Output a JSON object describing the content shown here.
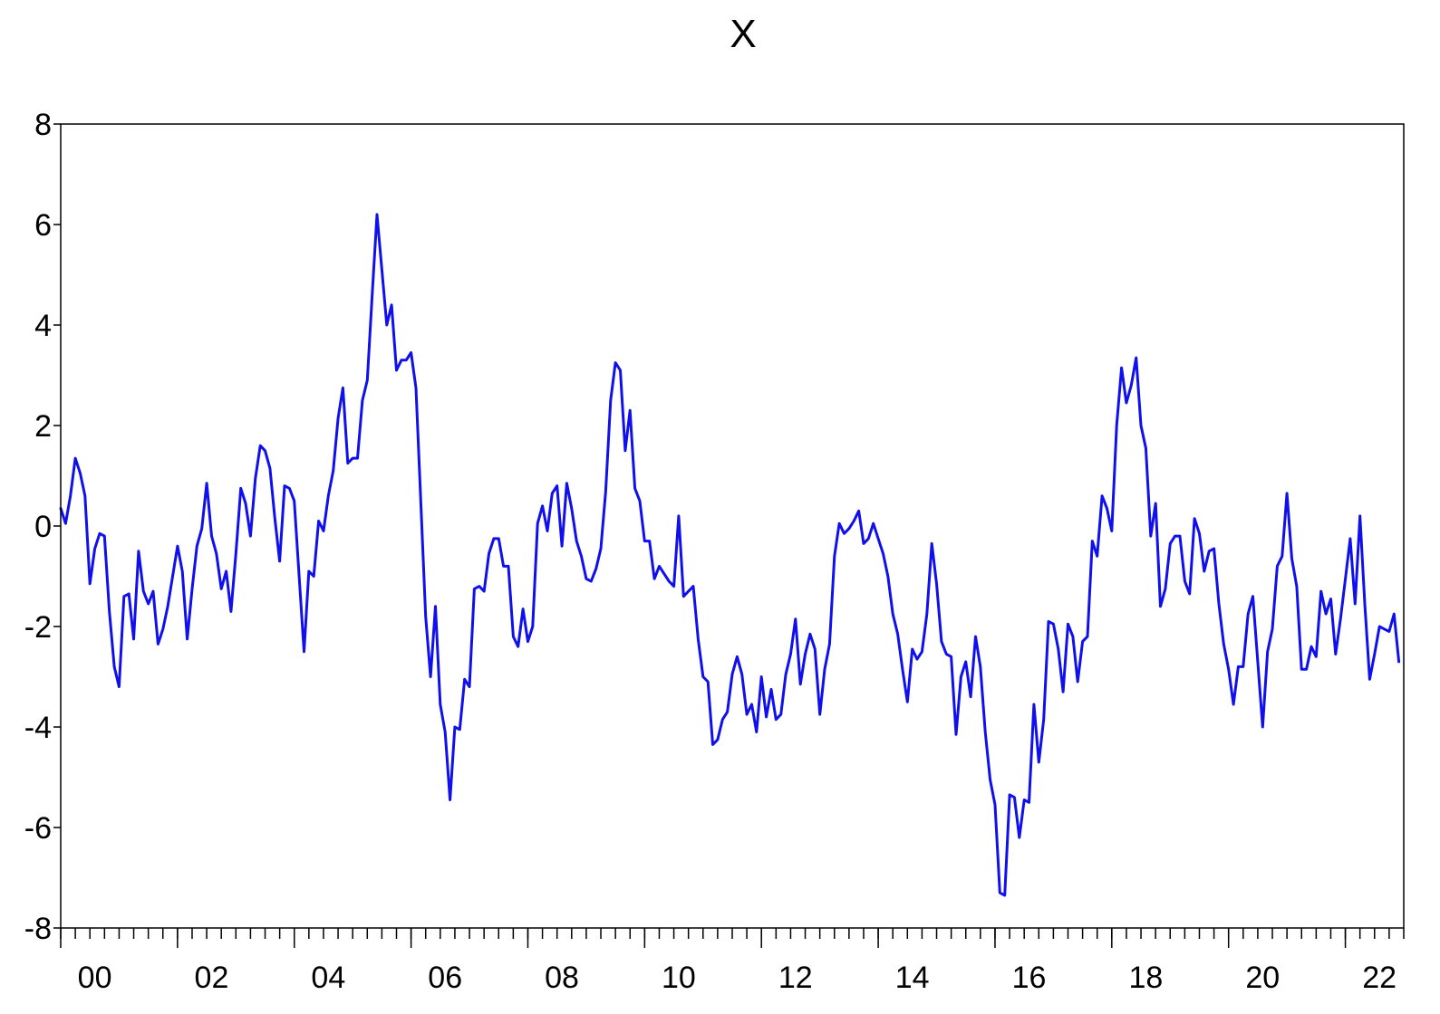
{
  "chart_data": {
    "type": "line",
    "title": "X",
    "xlabel": "",
    "ylabel": "",
    "x_range": [
      "1999-12",
      "2022-12"
    ],
    "ylim": [
      -8,
      8
    ],
    "y_ticks": [
      8,
      6,
      4,
      2,
      0,
      -2,
      -4,
      -6,
      -8
    ],
    "y_tick_labels": [
      "8",
      "6",
      "4",
      "2",
      "0",
      "-2",
      "-4",
      "-6",
      "-8"
    ],
    "x_ticks": [
      "2000",
      "2002",
      "2004",
      "2006",
      "2008",
      "2010",
      "2012",
      "2014",
      "2016",
      "2018",
      "2020",
      "2022"
    ],
    "x_tick_labels": [
      "00",
      "02",
      "04",
      "06",
      "08",
      "10",
      "12",
      "14",
      "16",
      "18",
      "20",
      "22"
    ],
    "grid": false,
    "legend": "none",
    "colors": {
      "series": "#1010ee",
      "axis": "#000000",
      "background": "#ffffff"
    },
    "series": [
      {
        "line_color": "#1010ee",
        "points": [
          [
            "1999-12",
            0.35
          ],
          [
            "2000-01",
            0.05
          ],
          [
            "2000-02",
            0.6
          ],
          [
            "2000-03",
            1.35
          ],
          [
            "2000-04",
            1.05
          ],
          [
            "2000-05",
            0.6
          ],
          [
            "2000-06",
            -1.15
          ],
          [
            "2000-07",
            -0.45
          ],
          [
            "2000-08",
            -0.15
          ],
          [
            "2000-09",
            -0.2
          ],
          [
            "2000-10",
            -1.7
          ],
          [
            "2000-11",
            -2.8
          ],
          [
            "2000-12",
            -3.2
          ],
          [
            "2001-01",
            -1.4
          ],
          [
            "2001-02",
            -1.35
          ],
          [
            "2001-03",
            -2.25
          ],
          [
            "2001-04",
            -0.5
          ],
          [
            "2001-05",
            -1.3
          ],
          [
            "2001-06",
            -1.55
          ],
          [
            "2001-07",
            -1.3
          ],
          [
            "2001-08",
            -2.35
          ],
          [
            "2001-09",
            -2.05
          ],
          [
            "2001-10",
            -1.6
          ],
          [
            "2001-11",
            -1.0
          ],
          [
            "2001-12",
            -0.4
          ],
          [
            "2002-01",
            -0.9
          ],
          [
            "2002-02",
            -2.25
          ],
          [
            "2002-03",
            -1.25
          ],
          [
            "2002-04",
            -0.4
          ],
          [
            "2002-05",
            -0.05
          ],
          [
            "2002-06",
            0.85
          ],
          [
            "2002-07",
            -0.2
          ],
          [
            "2002-08",
            -0.55
          ],
          [
            "2002-09",
            -1.25
          ],
          [
            "2002-10",
            -0.9
          ],
          [
            "2002-11",
            -1.7
          ],
          [
            "2002-12",
            -0.55
          ],
          [
            "2003-01",
            0.75
          ],
          [
            "2003-02",
            0.45
          ],
          [
            "2003-03",
            -0.2
          ],
          [
            "2003-04",
            0.95
          ],
          [
            "2003-05",
            1.6
          ],
          [
            "2003-06",
            1.5
          ],
          [
            "2003-07",
            1.15
          ],
          [
            "2003-08",
            0.15
          ],
          [
            "2003-09",
            -0.7
          ],
          [
            "2003-10",
            0.8
          ],
          [
            "2003-11",
            0.75
          ],
          [
            "2003-12",
            0.5
          ],
          [
            "2004-01",
            -1.0
          ],
          [
            "2004-02",
            -2.5
          ],
          [
            "2004-03",
            -0.9
          ],
          [
            "2004-04",
            -1.0
          ],
          [
            "2004-05",
            0.1
          ],
          [
            "2004-06",
            -0.1
          ],
          [
            "2004-07",
            0.6
          ],
          [
            "2004-08",
            1.1
          ],
          [
            "2004-09",
            2.15
          ],
          [
            "2004-10",
            2.75
          ],
          [
            "2004-11",
            1.25
          ],
          [
            "2004-12",
            1.35
          ],
          [
            "2005-01",
            1.35
          ],
          [
            "2005-02",
            2.5
          ],
          [
            "2005-03",
            2.9
          ],
          [
            "2005-04",
            4.6
          ],
          [
            "2005-05",
            6.2
          ],
          [
            "2005-06",
            5.1
          ],
          [
            "2005-07",
            4.0
          ],
          [
            "2005-08",
            4.4
          ],
          [
            "2005-09",
            3.1
          ],
          [
            "2005-10",
            3.3
          ],
          [
            "2005-11",
            3.3
          ],
          [
            "2005-12",
            3.45
          ],
          [
            "2006-01",
            2.75
          ],
          [
            "2006-02",
            0.5
          ],
          [
            "2006-03",
            -1.8
          ],
          [
            "2006-04",
            -3.0
          ],
          [
            "2006-05",
            -1.6
          ],
          [
            "2006-06",
            -3.55
          ],
          [
            "2006-07",
            -4.1
          ],
          [
            "2006-08",
            -5.45
          ],
          [
            "2006-09",
            -4.0
          ],
          [
            "2006-10",
            -4.05
          ],
          [
            "2006-11",
            -3.05
          ],
          [
            "2006-12",
            -3.2
          ],
          [
            "2007-01",
            -1.25
          ],
          [
            "2007-02",
            -1.2
          ],
          [
            "2007-03",
            -1.3
          ],
          [
            "2007-04",
            -0.55
          ],
          [
            "2007-05",
            -0.25
          ],
          [
            "2007-06",
            -0.25
          ],
          [
            "2007-07",
            -0.8
          ],
          [
            "2007-08",
            -0.8
          ],
          [
            "2007-09",
            -2.2
          ],
          [
            "2007-10",
            -2.4
          ],
          [
            "2007-11",
            -1.65
          ],
          [
            "2007-12",
            -2.3
          ],
          [
            "2008-01",
            -2.0
          ],
          [
            "2008-02",
            0.05
          ],
          [
            "2008-03",
            0.4
          ],
          [
            "2008-04",
            -0.1
          ],
          [
            "2008-05",
            0.65
          ],
          [
            "2008-06",
            0.8
          ],
          [
            "2008-07",
            -0.4
          ],
          [
            "2008-08",
            0.85
          ],
          [
            "2008-09",
            0.35
          ],
          [
            "2008-10",
            -0.3
          ],
          [
            "2008-11",
            -0.6
          ],
          [
            "2008-12",
            -1.05
          ],
          [
            "2009-01",
            -1.1
          ],
          [
            "2009-02",
            -0.85
          ],
          [
            "2009-03",
            -0.45
          ],
          [
            "2009-04",
            0.7
          ],
          [
            "2009-05",
            2.5
          ],
          [
            "2009-06",
            3.25
          ],
          [
            "2009-07",
            3.1
          ],
          [
            "2009-08",
            1.5
          ],
          [
            "2009-09",
            2.3
          ],
          [
            "2009-10",
            0.75
          ],
          [
            "2009-11",
            0.5
          ],
          [
            "2009-12",
            -0.3
          ],
          [
            "2010-01",
            -0.3
          ],
          [
            "2010-02",
            -1.05
          ],
          [
            "2010-03",
            -0.8
          ],
          [
            "2010-04",
            -0.95
          ],
          [
            "2010-05",
            -1.1
          ],
          [
            "2010-06",
            -1.2
          ],
          [
            "2010-07",
            0.2
          ],
          [
            "2010-08",
            -1.4
          ],
          [
            "2010-09",
            -1.3
          ],
          [
            "2010-10",
            -1.2
          ],
          [
            "2010-11",
            -2.25
          ],
          [
            "2010-12",
            -3.0
          ],
          [
            "2011-01",
            -3.1
          ],
          [
            "2011-02",
            -4.35
          ],
          [
            "2011-03",
            -4.25
          ],
          [
            "2011-04",
            -3.85
          ],
          [
            "2011-05",
            -3.7
          ],
          [
            "2011-06",
            -2.95
          ],
          [
            "2011-07",
            -2.6
          ],
          [
            "2011-08",
            -2.95
          ],
          [
            "2011-09",
            -3.75
          ],
          [
            "2011-10",
            -3.55
          ],
          [
            "2011-11",
            -4.1
          ],
          [
            "2011-12",
            -3.0
          ],
          [
            "2012-01",
            -3.8
          ],
          [
            "2012-02",
            -3.25
          ],
          [
            "2012-03",
            -3.85
          ],
          [
            "2012-04",
            -3.75
          ],
          [
            "2012-05",
            -2.95
          ],
          [
            "2012-06",
            -2.55
          ],
          [
            "2012-07",
            -1.85
          ],
          [
            "2012-08",
            -3.15
          ],
          [
            "2012-09",
            -2.55
          ],
          [
            "2012-10",
            -2.15
          ],
          [
            "2012-11",
            -2.45
          ],
          [
            "2012-12",
            -3.75
          ],
          [
            "2013-01",
            -2.85
          ],
          [
            "2013-02",
            -2.35
          ],
          [
            "2013-03",
            -0.6
          ],
          [
            "2013-04",
            0.05
          ],
          [
            "2013-05",
            -0.15
          ],
          [
            "2013-06",
            -0.05
          ],
          [
            "2013-07",
            0.1
          ],
          [
            "2013-08",
            0.3
          ],
          [
            "2013-09",
            -0.35
          ],
          [
            "2013-10",
            -0.25
          ],
          [
            "2013-11",
            0.05
          ],
          [
            "2013-12",
            -0.25
          ],
          [
            "2014-01",
            -0.55
          ],
          [
            "2014-02",
            -1.0
          ],
          [
            "2014-03",
            -1.75
          ],
          [
            "2014-04",
            -2.15
          ],
          [
            "2014-05",
            -2.85
          ],
          [
            "2014-06",
            -3.5
          ],
          [
            "2014-07",
            -2.45
          ],
          [
            "2014-08",
            -2.65
          ],
          [
            "2014-09",
            -2.5
          ],
          [
            "2014-10",
            -1.75
          ],
          [
            "2014-11",
            -0.35
          ],
          [
            "2014-12",
            -1.15
          ],
          [
            "2015-01",
            -2.3
          ],
          [
            "2015-02",
            -2.55
          ],
          [
            "2015-03",
            -2.6
          ],
          [
            "2015-04",
            -4.15
          ],
          [
            "2015-05",
            -3.0
          ],
          [
            "2015-06",
            -2.7
          ],
          [
            "2015-07",
            -3.4
          ],
          [
            "2015-08",
            -2.2
          ],
          [
            "2015-09",
            -2.8
          ],
          [
            "2015-10",
            -4.1
          ],
          [
            "2015-11",
            -5.05
          ],
          [
            "2015-12",
            -5.55
          ],
          [
            "2016-01",
            -7.3
          ],
          [
            "2016-02",
            -7.35
          ],
          [
            "2016-03",
            -5.35
          ],
          [
            "2016-04",
            -5.4
          ],
          [
            "2016-05",
            -6.2
          ],
          [
            "2016-06",
            -5.45
          ],
          [
            "2016-07",
            -5.5
          ],
          [
            "2016-08",
            -3.55
          ],
          [
            "2016-09",
            -4.7
          ],
          [
            "2016-10",
            -3.85
          ],
          [
            "2016-11",
            -1.9
          ],
          [
            "2016-12",
            -1.95
          ],
          [
            "2017-01",
            -2.45
          ],
          [
            "2017-02",
            -3.3
          ],
          [
            "2017-03",
            -1.95
          ],
          [
            "2017-04",
            -2.2
          ],
          [
            "2017-05",
            -3.1
          ],
          [
            "2017-06",
            -2.3
          ],
          [
            "2017-07",
            -2.2
          ],
          [
            "2017-08",
            -0.3
          ],
          [
            "2017-09",
            -0.6
          ],
          [
            "2017-10",
            0.6
          ],
          [
            "2017-11",
            0.35
          ],
          [
            "2017-12",
            -0.1
          ],
          [
            "2018-01",
            2.0
          ],
          [
            "2018-02",
            3.15
          ],
          [
            "2018-03",
            2.45
          ],
          [
            "2018-04",
            2.8
          ],
          [
            "2018-05",
            3.35
          ],
          [
            "2018-06",
            2.0
          ],
          [
            "2018-07",
            1.55
          ],
          [
            "2018-08",
            -0.2
          ],
          [
            "2018-09",
            0.45
          ],
          [
            "2018-10",
            -1.6
          ],
          [
            "2018-11",
            -1.25
          ],
          [
            "2018-12",
            -0.35
          ],
          [
            "2019-01",
            -0.2
          ],
          [
            "2019-02",
            -0.2
          ],
          [
            "2019-03",
            -1.1
          ],
          [
            "2019-04",
            -1.35
          ],
          [
            "2019-05",
            0.15
          ],
          [
            "2019-06",
            -0.15
          ],
          [
            "2019-07",
            -0.9
          ],
          [
            "2019-08",
            -0.5
          ],
          [
            "2019-09",
            -0.45
          ],
          [
            "2019-10",
            -1.55
          ],
          [
            "2019-11",
            -2.35
          ],
          [
            "2019-12",
            -2.85
          ],
          [
            "2020-01",
            -3.55
          ],
          [
            "2020-02",
            -2.8
          ],
          [
            "2020-03",
            -2.8
          ],
          [
            "2020-04",
            -1.75
          ],
          [
            "2020-05",
            -1.4
          ],
          [
            "2020-06",
            -2.7
          ],
          [
            "2020-07",
            -4.0
          ],
          [
            "2020-08",
            -2.5
          ],
          [
            "2020-09",
            -2.05
          ],
          [
            "2020-10",
            -0.8
          ],
          [
            "2020-11",
            -0.6
          ],
          [
            "2020-12",
            0.65
          ],
          [
            "2021-01",
            -0.65
          ],
          [
            "2021-02",
            -1.2
          ],
          [
            "2021-03",
            -2.85
          ],
          [
            "2021-04",
            -2.85
          ],
          [
            "2021-05",
            -2.4
          ],
          [
            "2021-06",
            -2.6
          ],
          [
            "2021-07",
            -1.3
          ],
          [
            "2021-08",
            -1.75
          ],
          [
            "2021-09",
            -1.45
          ],
          [
            "2021-10",
            -2.55
          ],
          [
            "2021-11",
            -1.85
          ],
          [
            "2021-12",
            -1.05
          ],
          [
            "2022-01",
            -0.25
          ],
          [
            "2022-02",
            -1.55
          ],
          [
            "2022-03",
            0.2
          ],
          [
            "2022-04",
            -1.55
          ],
          [
            "2022-05",
            -3.05
          ],
          [
            "2022-06",
            -2.55
          ],
          [
            "2022-07",
            -2.0
          ],
          [
            "2022-08",
            -2.05
          ],
          [
            "2022-09",
            -2.1
          ],
          [
            "2022-10",
            -1.75
          ],
          [
            "2022-11",
            -2.7
          ]
        ]
      }
    ]
  }
}
